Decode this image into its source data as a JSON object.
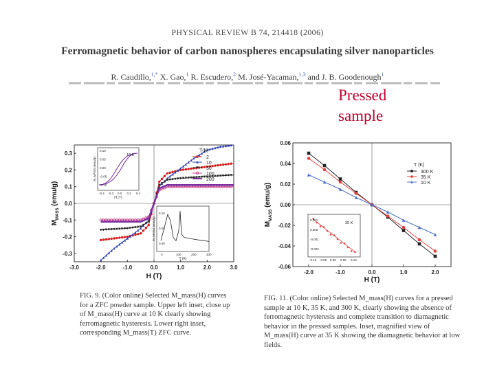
{
  "header": {
    "journal": "PHYSICAL REVIEW B 74, 214418 (2006)",
    "title": "Ferromagnetic behavior of carbon nanospheres encapsulating silver nanoparticles",
    "authors": [
      {
        "name": "R. Caudillo,",
        "sup": "1,*"
      },
      {
        "name": "X. Gao,",
        "sup": "1"
      },
      {
        "name": "R. Escudero,",
        "sup": "2"
      },
      {
        "name": "M. José-Yacaman,",
        "sup": "1,3"
      },
      {
        "name": "and J. B. Goodenough",
        "sup": "1"
      }
    ]
  },
  "annotation": {
    "line1": "Pressed",
    "line2": "sample"
  },
  "colors": {
    "annotation": "#c0002a",
    "s2": "#d62020",
    "s10": "#2d3fb0",
    "s50": "#222222",
    "s100": "#c03c8c",
    "s200": "#7a2ea0",
    "s300": "#222222",
    "s35": "#e04040",
    "s10b": "#4a6fc0"
  },
  "fig9": {
    "ylabel": "M",
    "ylabel_sub": "MASS",
    "ylabel_unit": "(emu/g)",
    "xlabel": "H (T)",
    "caption": "FIG. 9. (Color online) Selected M_mass(H) curves for a ZFC powder sample. Upper left inset, close up of M_mass(H) curve at 10 K clearly showing ferromagnetic hysteresis. Lower right inset, corresponding M_mass(T) ZFC curve.",
    "legend": {
      "title": "T(K)",
      "entries": [
        "2",
        "10",
        "50",
        "100",
        "200"
      ]
    },
    "inset_upper": {
      "label": "10 K",
      "ylabel": "M_MASS (emu/g)",
      "xlabel": "H (T)",
      "yticks": [
        "0.10",
        "0.05",
        "0.00",
        "-0.05",
        "-0.10"
      ],
      "xticks": [
        "-0.4",
        "-0.2",
        "0.0",
        "0.2",
        "0.4"
      ]
    },
    "inset_lower": {
      "ylabel": "M_MASS (emu/g)",
      "xlabel": "T (K)",
      "yticks": [
        "0.10",
        "0.05",
        "0.00"
      ],
      "xticks": [
        "0",
        "100",
        "200",
        "300"
      ]
    }
  },
  "fig11": {
    "ylabel": "M",
    "ylabel_sub": "MASS",
    "ylabel_unit": "(emu/g)",
    "xlabel": "H (T)",
    "caption": "FIG. 11. (Color online) Selected M_mass(H) curves for a pressed sample at 10 K, 35 K, and 300 K, clearly showing the absence of ferromagnetic hysteresis and complete transition to diamagnetic behavior in the pressed samples. Inset, magnified view of M_mass(H) curve at 35 K showing the diamagnetic behavior at low fields.",
    "legend": {
      "title": "T (K)",
      "entries": [
        "300 K",
        "35 K",
        "10 K"
      ]
    },
    "inset": {
      "label": "35 K",
      "yticks": [
        "0.001",
        "0.000",
        "-0.001",
        "-0.002"
      ],
      "xticks": [
        "-0.10",
        "-0.05",
        "0.00",
        "0.05",
        "0.10"
      ]
    }
  },
  "chart_data": [
    {
      "type": "line",
      "title": "",
      "xlabel": "H (T)",
      "ylabel": "M_MASS (emu/g)",
      "xlim": [
        -3.0,
        3.0
      ],
      "ylim": [
        -0.35,
        0.35
      ],
      "xticks": [
        "-3.0",
        "-2.0",
        "-1.0",
        "0.0",
        "1.0",
        "2.0",
        "3.0"
      ],
      "yticks": [
        "0.3",
        "0.2",
        "0.1",
        "0.0",
        "-0.1",
        "-0.2",
        "-0.3"
      ],
      "legend_placement": "right",
      "series": [
        {
          "name": "2",
          "x": [
            -2.0,
            -1.5,
            -1.0,
            -0.5,
            -0.2,
            0.0,
            0.2,
            0.5,
            1.0,
            1.5,
            2.0,
            2.5,
            3.0
          ],
          "y": [
            -0.22,
            -0.21,
            -0.2,
            -0.18,
            -0.13,
            0.0,
            0.13,
            0.18,
            0.2,
            0.21,
            0.22,
            0.23,
            0.24
          ]
        },
        {
          "name": "10",
          "x": [
            -2.0,
            -1.5,
            -1.0,
            -0.5,
            -0.2,
            0.0,
            0.2,
            0.5,
            1.0,
            1.5,
            2.0,
            2.5,
            3.0
          ],
          "y": [
            -0.34,
            -0.27,
            -0.21,
            -0.15,
            -0.1,
            0.0,
            0.1,
            0.15,
            0.21,
            0.27,
            0.32,
            0.34,
            0.35
          ]
        },
        {
          "name": "50",
          "x": [
            -2.0,
            -1.0,
            -0.5,
            -0.2,
            0.0,
            0.2,
            0.5,
            1.0,
            2.0,
            3.0
          ],
          "y": [
            -0.16,
            -0.15,
            -0.14,
            -0.11,
            0.0,
            0.11,
            0.14,
            0.15,
            0.16,
            0.17
          ]
        },
        {
          "name": "100",
          "x": [
            -2.0,
            -1.0,
            -0.5,
            -0.2,
            0.0,
            0.2,
            0.5,
            1.0,
            2.0,
            3.0
          ],
          "y": [
            -0.1,
            -0.1,
            -0.1,
            -0.08,
            0.0,
            0.08,
            0.1,
            0.1,
            0.1,
            0.1
          ]
        },
        {
          "name": "200",
          "x": [
            -2.0,
            -1.0,
            -0.5,
            -0.2,
            0.0,
            0.2,
            0.5,
            1.0,
            2.0,
            3.0
          ],
          "y": [
            -0.11,
            -0.11,
            -0.11,
            -0.09,
            0.0,
            0.09,
            0.11,
            0.11,
            0.11,
            0.11
          ]
        }
      ]
    },
    {
      "type": "line",
      "title": "",
      "xlabel": "H (T)",
      "ylabel": "M_MASS (emu/g)",
      "xlim": [
        -2.5,
        2.5
      ],
      "ylim": [
        -0.06,
        0.06
      ],
      "xticks": [
        "-2.0",
        "-1.0",
        "0.0",
        "1.0",
        "2.0"
      ],
      "yticks": [
        "0.06",
        "0.04",
        "0.02",
        "0.00",
        "-0.02",
        "-0.04",
        "-0.06"
      ],
      "legend_placement": "top-right",
      "series": [
        {
          "name": "300 K",
          "x": [
            -2.0,
            -1.5,
            -1.0,
            -0.5,
            0.0,
            0.5,
            1.0,
            1.5,
            2.0
          ],
          "y": [
            0.05,
            0.038,
            0.025,
            0.012,
            0.0,
            -0.012,
            -0.025,
            -0.038,
            -0.05
          ]
        },
        {
          "name": "35 K",
          "x": [
            -2.0,
            -1.5,
            -1.0,
            -0.5,
            0.0,
            0.5,
            1.0,
            1.5,
            2.0
          ],
          "y": [
            0.045,
            0.034,
            0.022,
            0.011,
            0.0,
            -0.011,
            -0.022,
            -0.034,
            -0.045
          ]
        },
        {
          "name": "10 K",
          "x": [
            -2.0,
            -1.5,
            -1.0,
            -0.5,
            0.0,
            0.5,
            1.0,
            1.5,
            2.0
          ],
          "y": [
            0.029,
            0.022,
            0.015,
            0.007,
            0.0,
            -0.007,
            -0.015,
            -0.022,
            -0.029
          ]
        }
      ]
    }
  ]
}
